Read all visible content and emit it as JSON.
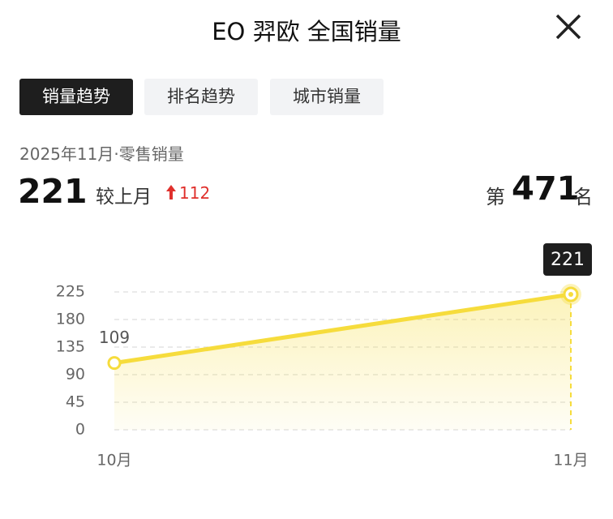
{
  "header": {
    "title": "EO 羿欧 全国销量"
  },
  "tabs": [
    "销量趋势",
    "排名趋势",
    "城市销量"
  ],
  "summary": {
    "period": "2025年11月·零售销量",
    "sales": 221,
    "compare_label": "较上月",
    "change": 112,
    "rank_prefix": "第",
    "rank": 471,
    "rank_suffix": "名"
  },
  "chart_data": {
    "type": "line",
    "categories": [
      "10月",
      "11月"
    ],
    "values": [
      109,
      221
    ],
    "color": "#f6dc3c",
    "ylim": [
      0,
      225
    ],
    "yticks": [
      0,
      45,
      90,
      135,
      180,
      225
    ],
    "grid": true
  }
}
